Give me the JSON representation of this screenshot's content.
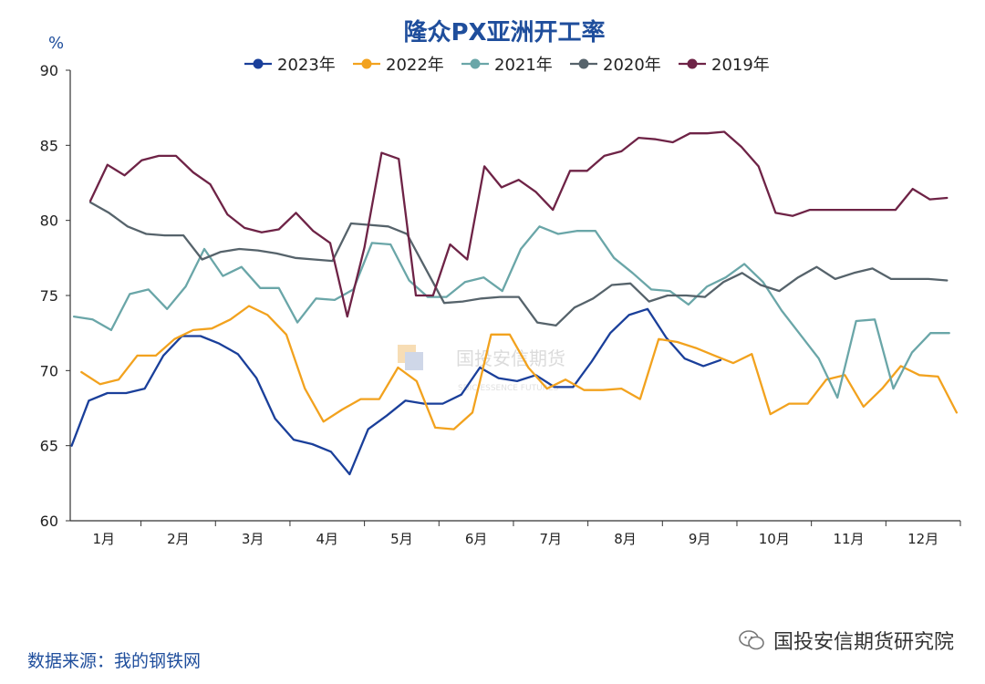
{
  "chart_data": {
    "type": "line",
    "title": "隆众PX亚洲开工率",
    "unit": "%",
    "ylim": [
      60,
      90
    ],
    "yticks": [
      60,
      65,
      70,
      75,
      80,
      85,
      90
    ],
    "x_range": [
      0.55,
      12.5
    ],
    "x_tick_labels": [
      "1月",
      "2月",
      "3月",
      "4月",
      "5月",
      "6月",
      "7月",
      "8月",
      "9月",
      "10月",
      "11月",
      "12月"
    ],
    "x_ticks_center": [
      1,
      2,
      3,
      4,
      5,
      6,
      7,
      8,
      9,
      10,
      11,
      12
    ],
    "grid": false,
    "legend_placement": "top-center",
    "series": [
      {
        "name": "2023年",
        "color": "#1a3f9a",
        "x": [
          0.57,
          0.8,
          1.05,
          1.3,
          1.55,
          1.8,
          2.05,
          2.3,
          2.55,
          2.8,
          3.05,
          3.3,
          3.55,
          3.8,
          4.05,
          4.3,
          4.55,
          4.8,
          5.05,
          5.3,
          5.55,
          5.8,
          6.05,
          6.3,
          6.55,
          6.8,
          7.05,
          7.3,
          7.55,
          7.8,
          8.05,
          8.3,
          8.55,
          8.8,
          9.05,
          9.28
        ],
        "values": [
          65.0,
          68.0,
          68.5,
          68.5,
          68.8,
          71.0,
          72.3,
          72.3,
          71.8,
          71.1,
          69.5,
          66.8,
          65.4,
          65.1,
          64.6,
          63.1,
          66.1,
          67.0,
          68.0,
          67.8,
          67.8,
          68.4,
          70.2,
          69.5,
          69.3,
          69.7,
          68.9,
          68.9,
          70.6,
          72.5,
          73.7,
          74.1,
          72.2,
          70.8,
          70.3,
          70.7
        ]
      },
      {
        "name": "2022年",
        "color": "#f2a21e",
        "x": [
          0.7,
          0.95,
          1.2,
          1.45,
          1.7,
          1.95,
          2.2,
          2.45,
          2.7,
          2.95,
          3.2,
          3.45,
          3.7,
          3.95,
          4.2,
          4.45,
          4.7,
          4.95,
          5.2,
          5.45,
          5.7,
          5.95,
          6.2,
          6.45,
          6.7,
          6.95,
          7.2,
          7.45,
          7.7,
          7.95,
          8.2,
          8.45,
          8.7,
          8.95,
          9.2,
          9.45,
          9.7,
          9.95,
          10.2,
          10.45,
          10.7,
          10.95,
          11.2,
          11.45,
          11.7,
          11.95,
          12.2,
          12.45
        ],
        "values": [
          69.9,
          69.1,
          69.4,
          71.0,
          71.0,
          72.1,
          72.7,
          72.8,
          73.4,
          74.3,
          73.7,
          72.4,
          68.8,
          66.6,
          67.4,
          68.1,
          68.1,
          70.2,
          69.3,
          66.2,
          66.1,
          67.2,
          72.4,
          72.4,
          70.2,
          68.8,
          69.4,
          68.7,
          68.7,
          68.8,
          68.1,
          72.1,
          71.9,
          71.5,
          71.0,
          70.5,
          71.1,
          67.1,
          67.8,
          67.8,
          69.4,
          69.7,
          67.6,
          68.8,
          70.3,
          69.7,
          69.6,
          67.2
        ]
      },
      {
        "name": "2021年",
        "color": "#6aa6a8",
        "x": [
          0.6,
          0.85,
          1.1,
          1.35,
          1.6,
          1.85,
          2.1,
          2.35,
          2.6,
          2.85,
          3.1,
          3.35,
          3.6,
          3.85,
          4.1,
          4.35,
          4.6,
          4.85,
          5.1,
          5.35,
          5.6,
          5.85,
          6.1,
          6.35,
          6.6,
          6.85,
          7.1,
          7.35,
          7.6,
          7.85,
          8.1,
          8.35,
          8.6,
          8.85,
          9.1,
          9.35,
          9.6,
          9.85,
          10.1,
          10.35,
          10.6,
          10.85,
          11.1,
          11.35,
          11.6,
          11.85,
          12.1,
          12.35
        ],
        "values": [
          73.6,
          73.4,
          72.7,
          75.1,
          75.4,
          74.1,
          75.6,
          78.1,
          76.3,
          76.9,
          75.5,
          75.5,
          73.2,
          74.8,
          74.7,
          75.4,
          78.5,
          78.4,
          76.0,
          74.9,
          74.9,
          75.9,
          76.2,
          75.3,
          78.1,
          79.6,
          79.1,
          79.3,
          79.3,
          77.5,
          76.5,
          75.4,
          75.3,
          74.4,
          75.6,
          76.2,
          77.1,
          75.9,
          74.0,
          72.4,
          70.8,
          68.2,
          73.3,
          73.4,
          68.8,
          71.2,
          72.5,
          72.5
        ]
      },
      {
        "name": "2020年",
        "color": "#56636b",
        "x": [
          0.82,
          1.07,
          1.32,
          1.57,
          1.82,
          2.07,
          2.32,
          2.57,
          2.82,
          3.07,
          3.32,
          3.57,
          3.82,
          4.07,
          4.32,
          4.57,
          4.82,
          5.07,
          5.32,
          5.57,
          5.82,
          6.07,
          6.32,
          6.57,
          6.82,
          7.07,
          7.32,
          7.57,
          7.82,
          8.07,
          8.32,
          8.57,
          8.82,
          9.07,
          9.32,
          9.57,
          9.82,
          10.07,
          10.32,
          10.57,
          10.82,
          11.07,
          11.32,
          11.57,
          11.82,
          12.07,
          12.32
        ],
        "values": [
          81.2,
          80.5,
          79.6,
          79.1,
          79.0,
          79.0,
          77.4,
          77.9,
          78.1,
          78.0,
          77.8,
          77.5,
          77.4,
          77.3,
          79.8,
          79.7,
          79.6,
          79.1,
          76.8,
          74.5,
          74.6,
          74.8,
          74.9,
          74.9,
          73.2,
          73.0,
          74.2,
          74.8,
          75.7,
          75.8,
          74.6,
          75.0,
          75.0,
          74.9,
          75.9,
          76.5,
          75.7,
          75.3,
          76.2,
          76.9,
          76.1,
          76.5,
          76.8,
          76.1,
          76.1,
          76.1,
          76.0
        ]
      },
      {
        "name": "2019年",
        "color": "#6e2346",
        "x": [
          0.82,
          1.05,
          1.28,
          1.51,
          1.74,
          1.97,
          2.2,
          2.43,
          2.66,
          2.89,
          3.12,
          3.35,
          3.58,
          3.81,
          4.04,
          4.27,
          4.5,
          4.73,
          4.96,
          5.19,
          5.42,
          5.65,
          5.88,
          6.11,
          6.34,
          6.57,
          6.8,
          7.03,
          7.26,
          7.49,
          7.72,
          7.95,
          8.18,
          8.41,
          8.64,
          8.87,
          9.1,
          9.33,
          9.56,
          9.79,
          10.02,
          10.25,
          10.48,
          10.71,
          10.94,
          11.17,
          11.4,
          11.63,
          11.86,
          12.09,
          12.32
        ],
        "values": [
          81.3,
          83.7,
          83.0,
          84.0,
          84.3,
          84.3,
          83.2,
          82.4,
          80.4,
          79.5,
          79.2,
          79.4,
          80.5,
          79.3,
          78.5,
          73.6,
          78.2,
          84.5,
          84.1,
          75.0,
          75.0,
          78.4,
          77.4,
          83.6,
          82.2,
          82.7,
          81.9,
          80.7,
          83.3,
          83.3,
          84.3,
          84.6,
          85.5,
          85.4,
          85.2,
          85.8,
          85.8,
          85.9,
          84.9,
          83.6,
          80.5,
          80.3,
          80.7,
          80.7,
          80.7,
          80.7,
          80.7,
          80.7,
          82.1,
          81.4,
          81.5
        ]
      }
    ]
  },
  "watermark": {
    "text": "国投安信期货",
    "subtext": "SDIC ESSENCE FUTURES"
  },
  "footer": {
    "source": "数据来源：我的钢铁网",
    "badge": "国投安信期货研究院"
  }
}
